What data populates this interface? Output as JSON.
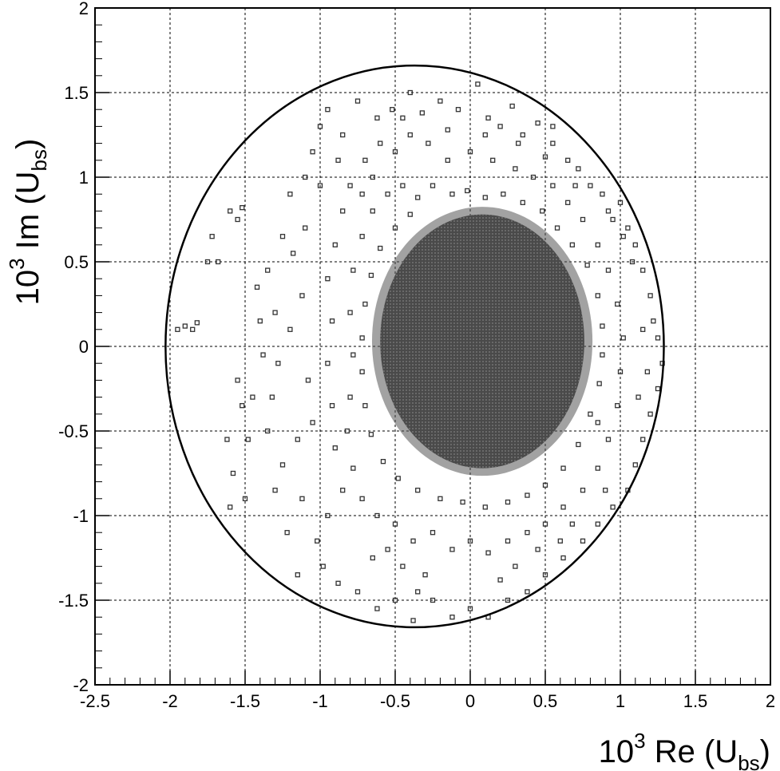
{
  "chart_data": {
    "type": "scatter",
    "xlabel": {
      "prefix": "10",
      "exp": "3",
      "main": " Re (U",
      "sub": "bs",
      "close": ")"
    },
    "ylabel": {
      "prefix": "10",
      "exp": "3",
      "main": " Im (U",
      "sub": "bs",
      "close": ")"
    },
    "xlim": [
      -2.5,
      2
    ],
    "ylim": [
      -2,
      2
    ],
    "grid": true,
    "x_ticks": [
      -2.5,
      -2,
      -1.5,
      -1,
      -0.5,
      0,
      0.5,
      1,
      1.5,
      2
    ],
    "x_tick_labels": [
      "-2.5",
      "-2",
      "-1.5",
      "-1",
      "-0.5",
      "0",
      "0.5",
      "1",
      "1.5",
      "2"
    ],
    "y_ticks": [
      -2,
      -1.5,
      -1,
      -0.5,
      0,
      0.5,
      1,
      1.5,
      2
    ],
    "y_tick_labels": [
      "-2",
      "-1.5",
      "-1",
      "-0.5",
      "0",
      "0.5",
      "1",
      "1.5",
      "2"
    ],
    "boundary_ellipse": {
      "center": [
        -0.37,
        0.0
      ],
      "rx": 1.66,
      "ry": 1.66
    },
    "core_ellipse": {
      "center": [
        0.08,
        0.03
      ],
      "rx": 0.68,
      "ry": 0.75
    },
    "points": [
      [
        -1.95,
        0.1
      ],
      [
        -1.9,
        0.12
      ],
      [
        -1.85,
        0.1
      ],
      [
        -1.82,
        0.14
      ],
      [
        -1.75,
        0.5
      ],
      [
        -1.72,
        0.65
      ],
      [
        -1.68,
        0.5
      ],
      [
        -1.6,
        0.8
      ],
      [
        -1.55,
        0.75
      ],
      [
        -1.52,
        0.82
      ],
      [
        -1.62,
        -0.55
      ],
      [
        -1.58,
        -0.75
      ],
      [
        -1.6,
        -0.95
      ],
      [
        -1.5,
        -0.9
      ],
      [
        -1.48,
        -0.55
      ],
      [
        -1.45,
        -0.3
      ],
      [
        -1.55,
        -0.2
      ],
      [
        -1.52,
        -0.35
      ],
      [
        -1.42,
        0.35
      ],
      [
        -1.35,
        0.45
      ],
      [
        -1.3,
        0.2
      ],
      [
        -1.28,
        -0.1
      ],
      [
        -1.35,
        -0.5
      ],
      [
        -1.25,
        -0.7
      ],
      [
        -1.22,
        -1.1
      ],
      [
        -1.15,
        -1.35
      ],
      [
        -1.12,
        -0.9
      ],
      [
        -1.2,
        0.9
      ],
      [
        -1.1,
        1.0
      ],
      [
        -1.05,
        1.15
      ],
      [
        -1.0,
        1.3
      ],
      [
        -0.95,
        1.4
      ],
      [
        -0.85,
        1.25
      ],
      [
        -0.75,
        1.45
      ],
      [
        -0.62,
        1.35
      ],
      [
        -0.52,
        1.4
      ],
      [
        -0.4,
        1.5
      ],
      [
        -0.32,
        1.38
      ],
      [
        -0.2,
        1.45
      ],
      [
        -0.08,
        1.4
      ],
      [
        0.05,
        1.55
      ],
      [
        0.12,
        1.35
      ],
      [
        0.2,
        1.3
      ],
      [
        0.28,
        1.42
      ],
      [
        0.35,
        1.25
      ],
      [
        0.45,
        1.32
      ],
      [
        0.55,
        1.2
      ],
      [
        0.65,
        1.1
      ],
      [
        0.72,
        1.05
      ],
      [
        0.8,
        0.95
      ],
      [
        0.88,
        0.9
      ],
      [
        0.95,
        0.75
      ],
      [
        1.0,
        0.85
      ],
      [
        1.05,
        0.7
      ],
      [
        1.1,
        0.6
      ],
      [
        1.15,
        0.45
      ],
      [
        1.2,
        0.3
      ],
      [
        1.22,
        0.15
      ],
      [
        1.25,
        0.05
      ],
      [
        1.28,
        -0.1
      ],
      [
        1.25,
        -0.25
      ],
      [
        1.2,
        -0.4
      ],
      [
        1.15,
        -0.55
      ],
      [
        1.1,
        -0.7
      ],
      [
        1.05,
        -0.85
      ],
      [
        0.95,
        -0.95
      ],
      [
        0.85,
        -1.05
      ],
      [
        0.75,
        -1.15
      ],
      [
        0.62,
        -1.25
      ],
      [
        0.5,
        -1.35
      ],
      [
        0.38,
        -1.45
      ],
      [
        0.25,
        -1.5
      ],
      [
        0.12,
        -1.6
      ],
      [
        0.0,
        -1.55
      ],
      [
        -0.12,
        -1.6
      ],
      [
        -0.25,
        -1.5
      ],
      [
        -0.38,
        -1.62
      ],
      [
        -0.5,
        -1.5
      ],
      [
        -0.62,
        -1.55
      ],
      [
        -0.75,
        -1.45
      ],
      [
        -0.88,
        -1.4
      ],
      [
        -0.98,
        -1.3
      ],
      [
        -1.02,
        -1.15
      ],
      [
        -0.95,
        -1.0
      ],
      [
        -0.85,
        -0.85
      ],
      [
        -0.9,
        -0.6
      ],
      [
        -0.92,
        -0.35
      ],
      [
        -0.95,
        -0.1
      ],
      [
        -0.92,
        0.15
      ],
      [
        -0.95,
        0.4
      ],
      [
        -0.9,
        0.6
      ],
      [
        -0.85,
        0.8
      ],
      [
        -0.8,
        0.95
      ],
      [
        -0.7,
        1.1
      ],
      [
        -0.6,
        1.2
      ],
      [
        -0.5,
        1.15
      ],
      [
        -0.4,
        1.25
      ],
      [
        -0.28,
        1.2
      ],
      [
        -0.15,
        1.1
      ],
      [
        0.0,
        1.15
      ],
      [
        0.15,
        1.1
      ],
      [
        0.3,
        1.05
      ],
      [
        0.42,
        1.0
      ],
      [
        0.55,
        0.95
      ],
      [
        0.65,
        0.85
      ],
      [
        0.75,
        0.75
      ],
      [
        0.85,
        0.6
      ],
      [
        0.92,
        0.45
      ],
      [
        0.98,
        0.25
      ],
      [
        1.02,
        0.05
      ],
      [
        1.0,
        -0.15
      ],
      [
        0.98,
        -0.35
      ],
      [
        0.92,
        -0.55
      ],
      [
        0.85,
        -0.72
      ],
      [
        0.75,
        -0.85
      ],
      [
        0.62,
        -0.95
      ],
      [
        0.5,
        -1.05
      ],
      [
        0.38,
        -1.1
      ],
      [
        0.25,
        -1.15
      ],
      [
        0.12,
        -1.22
      ],
      [
        0.0,
        -1.15
      ],
      [
        -0.12,
        -1.2
      ],
      [
        -0.25,
        -1.1
      ],
      [
        -0.38,
        -1.15
      ],
      [
        -0.5,
        -1.05
      ],
      [
        -0.62,
        -1.0
      ],
      [
        -0.72,
        -0.9
      ],
      [
        -0.78,
        -0.72
      ],
      [
        -0.82,
        -0.5
      ],
      [
        -0.8,
        -0.3
      ],
      [
        -0.78,
        -0.05
      ],
      [
        -0.8,
        0.2
      ],
      [
        -0.78,
        0.45
      ],
      [
        -0.72,
        0.65
      ],
      [
        -0.65,
        0.8
      ],
      [
        -0.55,
        0.9
      ],
      [
        -0.45,
        0.95
      ],
      [
        -0.35,
        0.88
      ],
      [
        -0.25,
        0.95
      ],
      [
        -0.12,
        0.9
      ],
      [
        -0.02,
        0.92
      ],
      [
        0.1,
        0.88
      ],
      [
        0.22,
        0.9
      ],
      [
        0.35,
        0.85
      ],
      [
        0.48,
        0.8
      ],
      [
        0.58,
        0.7
      ],
      [
        0.68,
        0.6
      ],
      [
        0.78,
        0.48
      ],
      [
        0.85,
        0.3
      ],
      [
        0.88,
        0.12
      ],
      [
        0.88,
        -0.05
      ],
      [
        0.86,
        -0.22
      ],
      [
        0.8,
        -0.4
      ],
      [
        0.72,
        -0.58
      ],
      [
        0.62,
        -0.72
      ],
      [
        0.5,
        -0.82
      ],
      [
        0.38,
        -0.88
      ],
      [
        0.25,
        -0.92
      ],
      [
        0.1,
        -0.95
      ],
      [
        -0.05,
        -0.92
      ],
      [
        -0.2,
        -0.9
      ],
      [
        -0.35,
        -0.85
      ],
      [
        -0.48,
        -0.78
      ],
      [
        -0.58,
        -0.68
      ],
      [
        -0.66,
        -0.52
      ],
      [
        -0.7,
        -0.35
      ],
      [
        -0.72,
        -0.15
      ],
      [
        -0.72,
        0.05
      ],
      [
        -0.7,
        0.25
      ],
      [
        -0.66,
        0.42
      ],
      [
        -0.6,
        0.58
      ],
      [
        -0.5,
        0.7
      ],
      [
        -0.4,
        0.78
      ],
      [
        -1.4,
        0.15
      ],
      [
        -1.38,
        -0.05
      ],
      [
        -1.18,
        0.55
      ],
      [
        -1.12,
        0.3
      ],
      [
        -1.08,
        -0.2
      ],
      [
        -1.05,
        -0.45
      ],
      [
        -1.1,
        0.7
      ],
      [
        -0.65,
        -1.25
      ],
      [
        -0.45,
        -1.3
      ],
      [
        -0.3,
        -1.35
      ],
      [
        0.3,
        -1.3
      ],
      [
        0.45,
        -1.2
      ],
      [
        0.68,
        -1.05
      ],
      [
        0.9,
        -0.85
      ],
      [
        1.12,
        -0.3
      ],
      [
        1.15,
        0.1
      ],
      [
        1.08,
        0.5
      ],
      [
        0.92,
        0.8
      ],
      [
        0.7,
        0.95
      ],
      [
        0.5,
        1.12
      ],
      [
        -0.15,
        1.28
      ],
      [
        -0.65,
        1.0
      ],
      [
        -0.88,
        1.1
      ],
      [
        -1.25,
        0.65
      ],
      [
        -1.32,
        -0.3
      ],
      [
        -1.3,
        -0.85
      ],
      [
        -1.15,
        -0.55
      ],
      [
        -0.35,
        -1.45
      ],
      [
        0.2,
        -1.38
      ],
      [
        0.85,
        -0.45
      ],
      [
        1.18,
        -0.15
      ],
      [
        0.55,
        1.3
      ],
      [
        0.1,
        1.25
      ],
      [
        -0.45,
        1.35
      ],
      [
        -1.0,
        0.95
      ],
      [
        -1.2,
        0.1
      ],
      [
        -0.55,
        -1.2
      ],
      [
        0.6,
        -1.15
      ],
      [
        1.02,
        0.65
      ],
      [
        -0.72,
        0.9
      ],
      [
        0.32,
        1.2
      ]
    ]
  }
}
